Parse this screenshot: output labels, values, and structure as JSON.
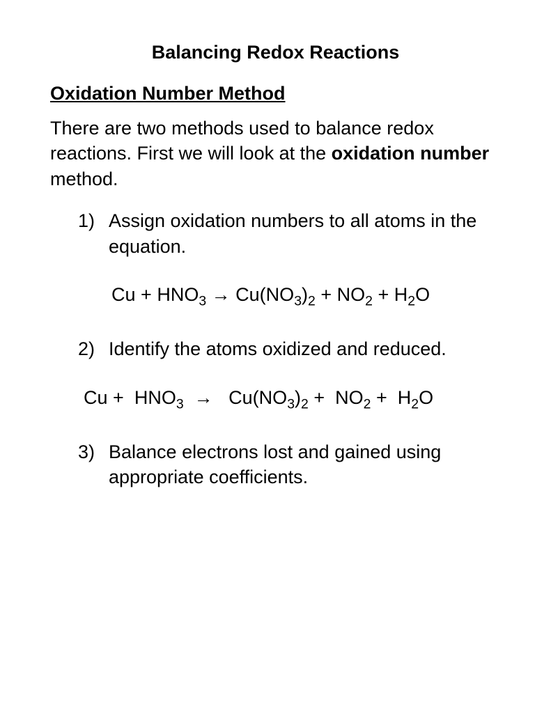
{
  "title": "Balancing Redox Reactions",
  "subtitle": "Oxidation Number Method",
  "intro_part1": "There are two methods used to balance redox reactions.  First we will look at the ",
  "intro_bold": "oxidation number",
  "intro_part2": " method.",
  "steps": {
    "s1_num": "1)",
    "s1_text": "Assign oxidation numbers to all atoms in the equation.",
    "s2_num": "2)",
    "s2_text": "Identify the atoms oxidized and reduced.",
    "s3_num": "3)",
    "s3_text": "Balance electrons lost and gained using appropriate coefficients."
  },
  "equation": {
    "cu": "Cu",
    "plus": "+",
    "hno3_h": "HNO",
    "hno3_sub": "3",
    "arrow": "→",
    "cuno_a": "Cu(NO",
    "cuno_sub1": "3",
    "cuno_b": ")",
    "cuno_sub2": "2",
    "no2_a": "NO",
    "no2_sub": "2",
    "h2o_a": "H",
    "h2o_sub": "2",
    "h2o_b": "O"
  }
}
